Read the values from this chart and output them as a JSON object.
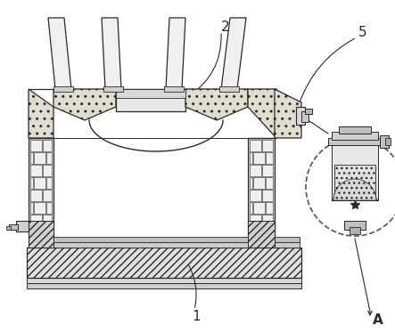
{
  "bg_color": "#ffffff",
  "lc": "#2a2a2a",
  "label_1": "1",
  "label_2": "2",
  "label_5": "5",
  "label_A": "A",
  "fig_width": 4.43,
  "fig_height": 3.74,
  "dpi": 100
}
